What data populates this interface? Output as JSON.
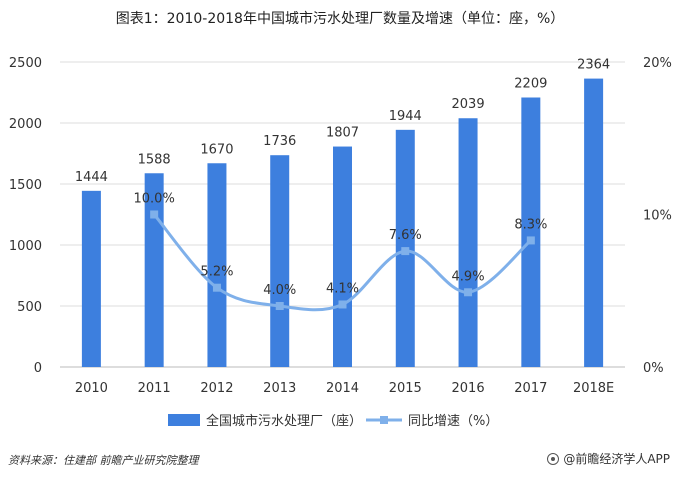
{
  "title": "图表1：2010-2018年中国城市污水处理厂数量及增速（单位：座，%）",
  "chart_data": {
    "type": "bar",
    "categories": [
      "2010",
      "2011",
      "2012",
      "2013",
      "2014",
      "2015",
      "2016",
      "2017",
      "2018E"
    ],
    "series": [
      {
        "name": "全国城市污水处理厂（座）",
        "type": "bar",
        "axis": "left",
        "values": [
          1444,
          1588,
          1670,
          1736,
          1807,
          1944,
          2039,
          2209,
          2364
        ],
        "labels": [
          "1444",
          "1588",
          "1670",
          "1736",
          "1807",
          "1944",
          "2039",
          "2209",
          "2364"
        ],
        "color": "#3d7fde"
      },
      {
        "name": "同比增速（%）",
        "type": "line",
        "axis": "right",
        "values": [
          null,
          10.0,
          5.2,
          4.0,
          4.1,
          7.6,
          4.9,
          8.3,
          null
        ],
        "labels": [
          "",
          "10.0%",
          "5.2%",
          "4.0%",
          "4.1%",
          "7.6%",
          "4.9%",
          "8.3%",
          ""
        ],
        "color": "#7fb0ea"
      }
    ],
    "y_left": {
      "min": 0,
      "max": 2500,
      "ticks": [
        0,
        500,
        1000,
        1500,
        2000,
        2500
      ]
    },
    "y_right": {
      "min": 0,
      "max": 20,
      "ticks": [
        "0%",
        "10%",
        "20%"
      ],
      "tick_values": [
        0,
        10,
        20
      ]
    },
    "grid": true,
    "legend_position": "bottom"
  },
  "source": "资料来源：住建部 前瞻产业研究院整理",
  "brand": "@前瞻经济学人APP"
}
